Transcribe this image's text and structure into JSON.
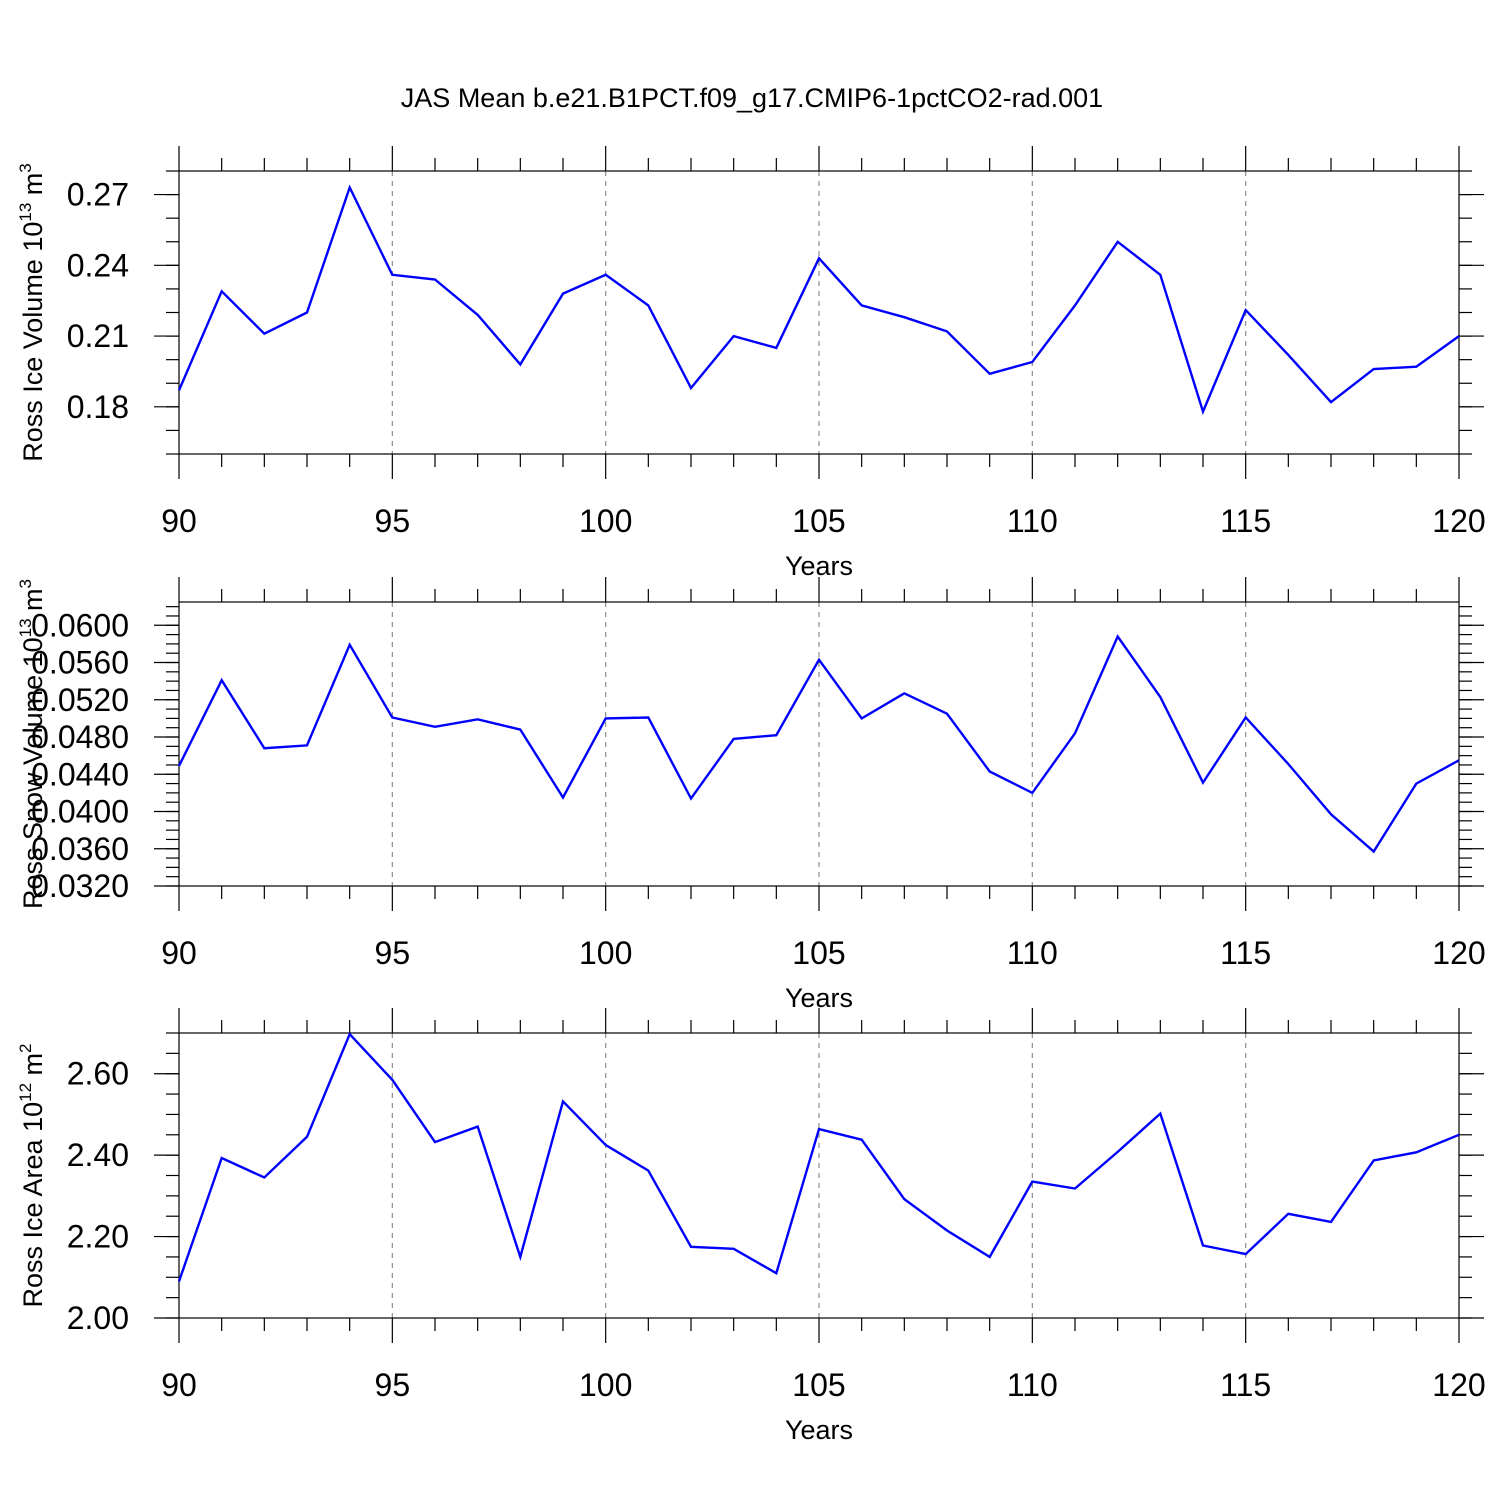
{
  "title": "JAS Mean b.e21.B1PCT.f09_g17.CMIP6-1pctCO2-rad.001",
  "colors": {
    "line": "#0000ff",
    "grid": "#8c8c8c",
    "axes": "#000000"
  },
  "chart_data": [
    {
      "type": "line",
      "xlabel": "Years",
      "ylabel": "Ross Ice Volume 10",
      "ylabel_exp": "13",
      "ylabel_unit": " m",
      "ylabel_unit_exp": "3",
      "xlim": [
        90,
        120
      ],
      "ylim": [
        0.16,
        0.28
      ],
      "xticks": [
        90,
        95,
        100,
        105,
        110,
        115,
        120
      ],
      "yticks": [
        "0.18",
        "0.21",
        "0.24",
        "0.27"
      ],
      "ytick_values": [
        0.18,
        0.21,
        0.24,
        0.27
      ],
      "yminor_step": 0.01,
      "grid": "vertical dashed at major x ticks",
      "x": [
        90,
        91,
        92,
        93,
        94,
        95,
        96,
        97,
        98,
        99,
        100,
        101,
        102,
        103,
        104,
        105,
        106,
        107,
        108,
        109,
        110,
        111,
        112,
        113,
        114,
        115,
        116,
        117,
        118,
        119,
        120
      ],
      "values": [
        0.187,
        0.229,
        0.211,
        0.22,
        0.273,
        0.236,
        0.234,
        0.219,
        0.198,
        0.228,
        0.236,
        0.223,
        0.188,
        0.21,
        0.205,
        0.243,
        0.223,
        0.218,
        0.212,
        0.194,
        0.199,
        0.223,
        0.25,
        0.236,
        0.178,
        0.221,
        0.202,
        0.182,
        0.196,
        0.197,
        0.21
      ]
    },
    {
      "type": "line",
      "xlabel": "Years",
      "ylabel": "Ross Snow Volume 10",
      "ylabel_exp": "13",
      "ylabel_unit": " m",
      "ylabel_unit_exp": "3",
      "xlim": [
        90,
        120
      ],
      "ylim": [
        0.032,
        0.0625
      ],
      "xticks": [
        90,
        95,
        100,
        105,
        110,
        115,
        120
      ],
      "yticks": [
        "0.0320",
        "0.0360",
        "0.0400",
        "0.0440",
        "0.0480",
        "0.0520",
        "0.0560",
        "0.0600"
      ],
      "ytick_values": [
        0.032,
        0.036,
        0.04,
        0.044,
        0.048,
        0.052,
        0.056,
        0.06
      ],
      "yminor_step": 0.001,
      "grid": "vertical dashed at major x ticks",
      "x": [
        90,
        91,
        92,
        93,
        94,
        95,
        96,
        97,
        98,
        99,
        100,
        101,
        102,
        103,
        104,
        105,
        106,
        107,
        108,
        109,
        110,
        111,
        112,
        113,
        114,
        115,
        116,
        117,
        118,
        119,
        120
      ],
      "values": [
        0.0449,
        0.0541,
        0.0468,
        0.0471,
        0.0579,
        0.0501,
        0.0491,
        0.0499,
        0.0488,
        0.0415,
        0.05,
        0.0501,
        0.0414,
        0.0478,
        0.0482,
        0.0563,
        0.05,
        0.0527,
        0.0505,
        0.0443,
        0.042,
        0.0484,
        0.0588,
        0.0523,
        0.0431,
        0.0501,
        0.0451,
        0.0397,
        0.0357,
        0.043,
        0.0455
      ]
    },
    {
      "type": "line",
      "xlabel": "Years",
      "ylabel": "Ross Ice Area 10",
      "ylabel_exp": "12",
      "ylabel_unit": " m",
      "ylabel_unit_exp": "2",
      "xlim": [
        90,
        120
      ],
      "ylim": [
        2.0,
        2.7
      ],
      "xticks": [
        90,
        95,
        100,
        105,
        110,
        115,
        120
      ],
      "yticks": [
        "2.00",
        "2.20",
        "2.40",
        "2.60"
      ],
      "ytick_values": [
        2.0,
        2.2,
        2.4,
        2.6
      ],
      "yminor_step": 0.05,
      "grid": "vertical dashed at major x ticks",
      "x": [
        90,
        91,
        92,
        93,
        94,
        95,
        96,
        97,
        98,
        99,
        100,
        101,
        102,
        103,
        104,
        105,
        106,
        107,
        108,
        109,
        110,
        111,
        112,
        113,
        114,
        115,
        116,
        117,
        118,
        119,
        120
      ],
      "values": [
        2.09,
        2.393,
        2.345,
        2.445,
        2.697,
        2.585,
        2.432,
        2.47,
        2.15,
        2.532,
        2.425,
        2.362,
        2.175,
        2.17,
        2.11,
        2.464,
        2.438,
        2.292,
        2.215,
        2.15,
        2.335,
        2.318,
        2.408,
        2.502,
        2.178,
        2.157,
        2.256,
        2.236,
        2.387,
        2.407,
        2.45
      ]
    }
  ]
}
